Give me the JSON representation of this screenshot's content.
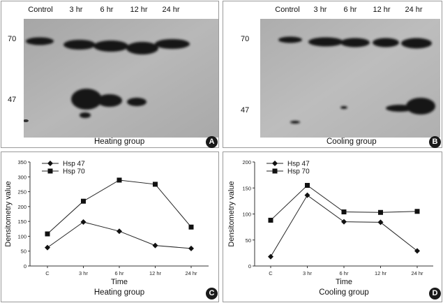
{
  "panels": [
    {
      "letter": "A",
      "caption": "Heating group",
      "lanes": [
        "Control",
        "3 hr",
        "6 hr",
        "12 hr",
        "24 hr"
      ],
      "markers": [
        "70",
        "47"
      ]
    },
    {
      "letter": "B",
      "caption": "Cooling group",
      "lanes": [
        "Control",
        "3 hr",
        "6 hr",
        "12 hr",
        "24 hr"
      ],
      "markers": [
        "70",
        "47"
      ]
    }
  ],
  "chart_data": [
    {
      "type": "line",
      "letter": "C",
      "title": "",
      "caption": "Heating group",
      "xlabel": "Time",
      "ylabel": "Densitometry value",
      "categories": [
        "C",
        "3 hr",
        "6 hr",
        "12 hr",
        "24 hr"
      ],
      "ylim": [
        0,
        350
      ],
      "yticks": [
        0,
        50,
        100,
        150,
        200,
        250,
        300,
        350
      ],
      "grid": false,
      "legend": "top-left",
      "series": [
        {
          "name": "Hsp 47",
          "marker": "diamond",
          "values": [
            62,
            148,
            117,
            69,
            59
          ]
        },
        {
          "name": "Hsp 70",
          "marker": "square",
          "values": [
            108,
            218,
            289,
            275,
            131
          ]
        }
      ]
    },
    {
      "type": "line",
      "letter": "D",
      "title": "",
      "caption": "Cooling group",
      "xlabel": "Time",
      "ylabel": "Densitometry value",
      "categories": [
        "C",
        "3 hr",
        "6 hr",
        "12 hr",
        "24 hr"
      ],
      "ylim": [
        0,
        200
      ],
      "yticks": [
        0,
        50,
        100,
        150,
        200
      ],
      "grid": false,
      "legend": "top-left",
      "series": [
        {
          "name": "Hsp 47",
          "marker": "diamond",
          "values": [
            18,
            136,
            85,
            84,
            29
          ]
        },
        {
          "name": "Hsp 70",
          "marker": "square",
          "values": [
            88,
            155,
            104,
            103,
            105
          ]
        }
      ]
    }
  ]
}
